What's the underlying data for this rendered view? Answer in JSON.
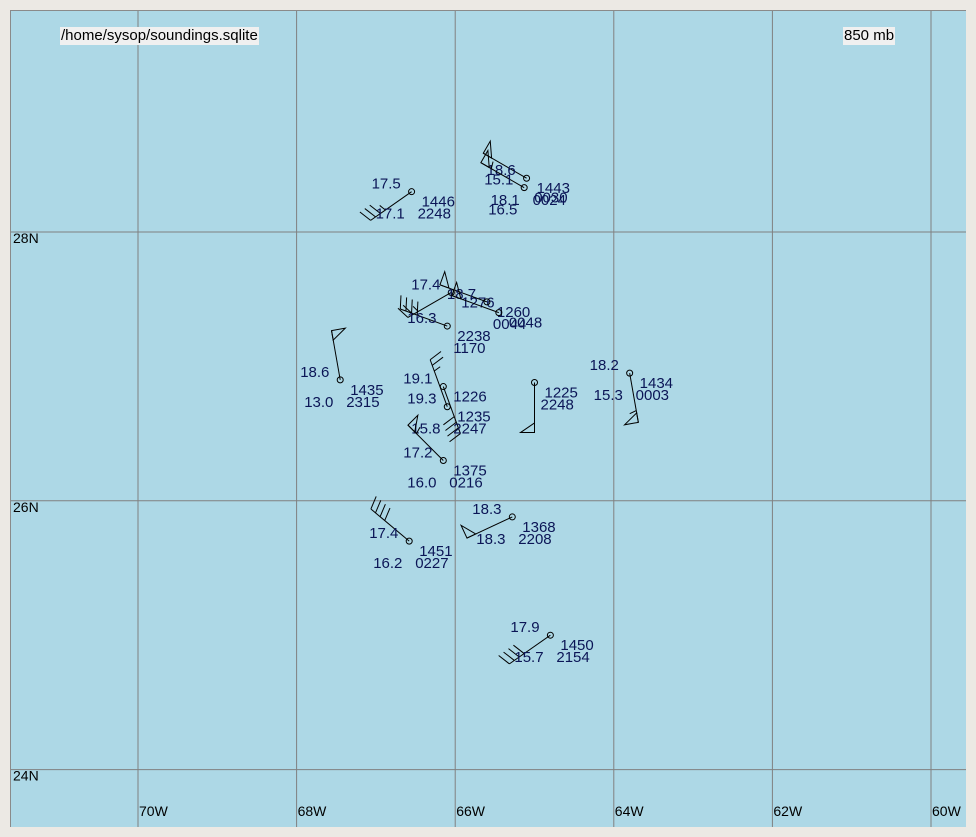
{
  "title": "/home/sysop/soundings.sqlite",
  "level": "850 mb",
  "colors": {
    "water": "#add8e6",
    "grid": "#808080",
    "text": "#0b1556"
  },
  "latitudes": [
    {
      "label": "28N",
      "value": 28
    },
    {
      "label": "26N",
      "value": 26
    },
    {
      "label": "24N",
      "value": 24
    }
  ],
  "longitudes": [
    {
      "label": "70W",
      "value": -70
    },
    {
      "label": "68W",
      "value": -68
    },
    {
      "label": "66W",
      "value": -66
    },
    {
      "label": "64W",
      "value": -64
    },
    {
      "label": "62W",
      "value": -62
    },
    {
      "label": "60W",
      "value": -60
    }
  ],
  "stations": [
    {
      "lon": -66.55,
      "lat": 28.3,
      "temp": "17.5",
      "dew": "17.1",
      "hgt": "1446",
      "time": "2248",
      "wdir": 235,
      "wspd": 35
    },
    {
      "lon": -65.1,
      "lat": 28.4,
      "temp": "18.6",
      "dew": "18.1",
      "hgt": "1443",
      "time": "0024",
      "wdir": 300,
      "wspd": 50
    },
    {
      "lon": -65.13,
      "lat": 28.33,
      "temp": "15.1",
      "dew": "16.5",
      "hgt": "0030",
      "time": "",
      "wdir": 300,
      "wspd": 55
    },
    {
      "lon": -66.05,
      "lat": 27.55,
      "temp": "17.4",
      "dew": "",
      "hgt": "1276",
      "time": "",
      "wdir": 240,
      "wspd": 25
    },
    {
      "lon": -65.6,
      "lat": 27.48,
      "temp": "18.7",
      "dew": "",
      "hgt": "1260",
      "time": "0044",
      "wdir": 290,
      "wspd": 50
    },
    {
      "lon": -65.45,
      "lat": 27.4,
      "temp": "",
      "dew": "",
      "hgt": "0048",
      "time": "",
      "wdir": 290,
      "wspd": 50
    },
    {
      "lon": -66.1,
      "lat": 27.3,
      "temp": "16.3",
      "dew": "",
      "hgt": "2238",
      "time": "1170",
      "wdir": 290,
      "wspd": 40
    },
    {
      "lon": -67.45,
      "lat": 26.9,
      "temp": "18.6",
      "dew": "13.0",
      "hgt": "1435",
      "time": "2315",
      "wdir": 350,
      "wspd": 50
    },
    {
      "lon": -63.8,
      "lat": 26.95,
      "temp": "18.2",
      "dew": "15.3",
      "hgt": "1434",
      "time": "0003",
      "wdir": 170,
      "wspd": 55
    },
    {
      "lon": -66.15,
      "lat": 26.85,
      "temp": "19.1",
      "dew": "",
      "hgt": "1226",
      "time": "",
      "wdir": 160,
      "wspd": 40
    },
    {
      "lon": -66.1,
      "lat": 26.7,
      "temp": "19.3",
      "dew": "15.8",
      "hgt": "1235",
      "time": "2247",
      "wdir": 340,
      "wspd": 25
    },
    {
      "lon": -65.0,
      "lat": 26.88,
      "temp": "",
      "dew": "",
      "hgt": "1225",
      "time": "2248",
      "wdir": 180,
      "wspd": 50
    },
    {
      "lon": -66.15,
      "lat": 26.3,
      "temp": "17.2",
      "dew": "16.0",
      "hgt": "1375",
      "time": "0216",
      "wdir": 315,
      "wspd": 55
    },
    {
      "lon": -65.28,
      "lat": 25.88,
      "temp": "18.3",
      "dew": "18.3",
      "hgt": "1368",
      "time": "2208",
      "wdir": 245,
      "wspd": 50
    },
    {
      "lon": -66.58,
      "lat": 25.7,
      "temp": "17.4",
      "dew": "16.2",
      "hgt": "1451",
      "time": "0227",
      "wdir": 310,
      "wspd": 40
    },
    {
      "lon": -64.8,
      "lat": 25.0,
      "temp": "17.9",
      "dew": "15.7",
      "hgt": "1450",
      "time": "2154",
      "wdir": 235,
      "wspd": 40
    }
  ]
}
